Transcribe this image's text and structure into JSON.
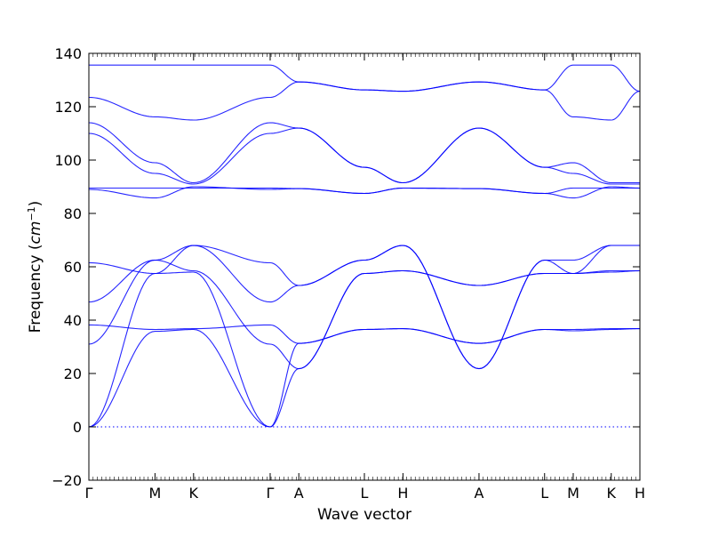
{
  "chart_data": {
    "type": "line",
    "xlabel": "Wave vector",
    "ylabel_text": "Frequency (",
    "ylabel_unit_base": "cm",
    "ylabel_unit_exp": "−1",
    "ylabel_close": ")",
    "ylim": [
      -20,
      140
    ],
    "yticks": [
      "−20",
      "0",
      "20",
      "40",
      "60",
      "80",
      "100",
      "120",
      "140"
    ],
    "xlim": [
      0,
      1
    ],
    "high_symmetry_points": [
      {
        "label": "Γ",
        "x": 0.0
      },
      {
        "label": "M",
        "x": 0.12
      },
      {
        "label": "K",
        "x": 0.19
      },
      {
        "label": "Γ",
        "x": 0.329
      },
      {
        "label": "A",
        "x": 0.381
      },
      {
        "label": "L",
        "x": 0.5
      },
      {
        "label": "H",
        "x": 0.57
      },
      {
        "label": "A",
        "x": 0.708
      },
      {
        "label": "L",
        "x": 0.827
      },
      {
        "label": "M",
        "x": 0.879
      },
      {
        "label": "K",
        "x": 0.948
      },
      {
        "label": "H",
        "x": 1.0
      }
    ],
    "reference_line": {
      "y": 0,
      "style": "dotted"
    },
    "line_color": "#0000ff",
    "series": [
      {
        "x": [
          0,
          0.12,
          0.19,
          0.329,
          0.381,
          0.5,
          0.57,
          0.708,
          0.827,
          0.879,
          0.948,
          1.0
        ],
        "values": [
          135.6,
          135.6,
          135.6,
          135.6,
          129.3,
          126.3,
          125.8,
          129.3,
          126.3,
          135.6,
          135.6,
          125.8
        ]
      },
      {
        "x": [
          0,
          0.12,
          0.19,
          0.329,
          0.381,
          0.5,
          0.57,
          0.708,
          0.827,
          0.879,
          0.948,
          1.0
        ],
        "values": [
          123.5,
          116.2,
          115.0,
          123.5,
          129.3,
          126.3,
          125.8,
          129.3,
          126.3,
          116.2,
          115.0,
          125.8
        ]
      },
      {
        "x": [
          0,
          0.12,
          0.19,
          0.329,
          0.381,
          0.5,
          0.57,
          0.708,
          0.827,
          0.879,
          0.948,
          1.0
        ],
        "values": [
          114.0,
          99.0,
          91.5,
          114.0,
          112.0,
          97.3,
          91.5,
          112.0,
          97.3,
          99.0,
          91.5,
          91.5
        ]
      },
      {
        "x": [
          0,
          0.12,
          0.19,
          0.329,
          0.381,
          0.5,
          0.57,
          0.708,
          0.827,
          0.879,
          0.948,
          1.0
        ],
        "values": [
          110.0,
          95.0,
          91.0,
          110.0,
          112.0,
          97.3,
          91.5,
          112.0,
          97.3,
          95.0,
          91.0,
          91.0
        ]
      },
      {
        "x": [
          0,
          0.12,
          0.19,
          0.329,
          0.381,
          0.5,
          0.57,
          0.708,
          0.827,
          0.879,
          0.948,
          1.0
        ],
        "values": [
          89.5,
          89.5,
          89.5,
          89.5,
          89.3,
          87.5,
          89.5,
          89.3,
          87.5,
          89.5,
          89.5,
          89.5
        ]
      },
      {
        "x": [
          0,
          0.12,
          0.19,
          0.329,
          0.381,
          0.5,
          0.57,
          0.708,
          0.827,
          0.879,
          0.948,
          1.0
        ],
        "values": [
          89.0,
          85.8,
          90.0,
          89.0,
          89.3,
          87.5,
          89.5,
          89.3,
          87.5,
          85.8,
          90.0,
          89.5
        ]
      },
      {
        "x": [
          0,
          0.12,
          0.19,
          0.329,
          0.381,
          0.5,
          0.57,
          0.708,
          0.827,
          0.879,
          0.948,
          1.0
        ],
        "values": [
          61.5,
          57.5,
          68.0,
          61.5,
          53.0,
          62.5,
          68.0,
          21.8,
          62.5,
          57.5,
          68.0,
          68.0
        ]
      },
      {
        "x": [
          0,
          0.12,
          0.19,
          0.329,
          0.381,
          0.5,
          0.57,
          0.708,
          0.827,
          0.879,
          0.948,
          1.0
        ],
        "values": [
          46.8,
          62.5,
          68.0,
          46.8,
          53.0,
          62.5,
          68.0,
          21.8,
          62.5,
          62.5,
          68.0,
          68.0
        ]
      },
      {
        "x": [
          0,
          0.12,
          0.19,
          0.329,
          0.381,
          0.5,
          0.57,
          0.708,
          0.827,
          0.879,
          0.948,
          1.0
        ],
        "values": [
          31.0,
          62.5,
          58.5,
          31.0,
          21.8,
          57.5,
          58.5,
          53.0,
          57.5,
          57.5,
          58.5,
          58.5
        ]
      },
      {
        "x": [
          0,
          0.12,
          0.19,
          0.329,
          0.381,
          0.5,
          0.57,
          0.708,
          0.827,
          0.879,
          0.948,
          1.0
        ],
        "values": [
          38.2,
          36.5,
          36.8,
          38.2,
          31.3,
          36.5,
          36.8,
          31.3,
          36.5,
          36.5,
          36.8,
          36.8
        ]
      },
      {
        "x": [
          0,
          0.12,
          0.19,
          0.329,
          0.381,
          0.5,
          0.57,
          0.708,
          0.827,
          0.879,
          0.948,
          1.0
        ],
        "values": [
          0.0,
          35.8,
          36.5,
          0.0,
          31.3,
          36.5,
          36.8,
          31.3,
          36.5,
          36.0,
          36.5,
          36.8
        ]
      },
      {
        "x": [
          0,
          0.12,
          0.19,
          0.329,
          0.381,
          0.5,
          0.57,
          0.708,
          0.827,
          0.879,
          0.948,
          1.0
        ],
        "values": [
          0.0,
          57.5,
          58.0,
          0.0,
          21.8,
          57.5,
          58.5,
          53.0,
          57.5,
          57.5,
          58.0,
          58.5
        ]
      }
    ]
  }
}
